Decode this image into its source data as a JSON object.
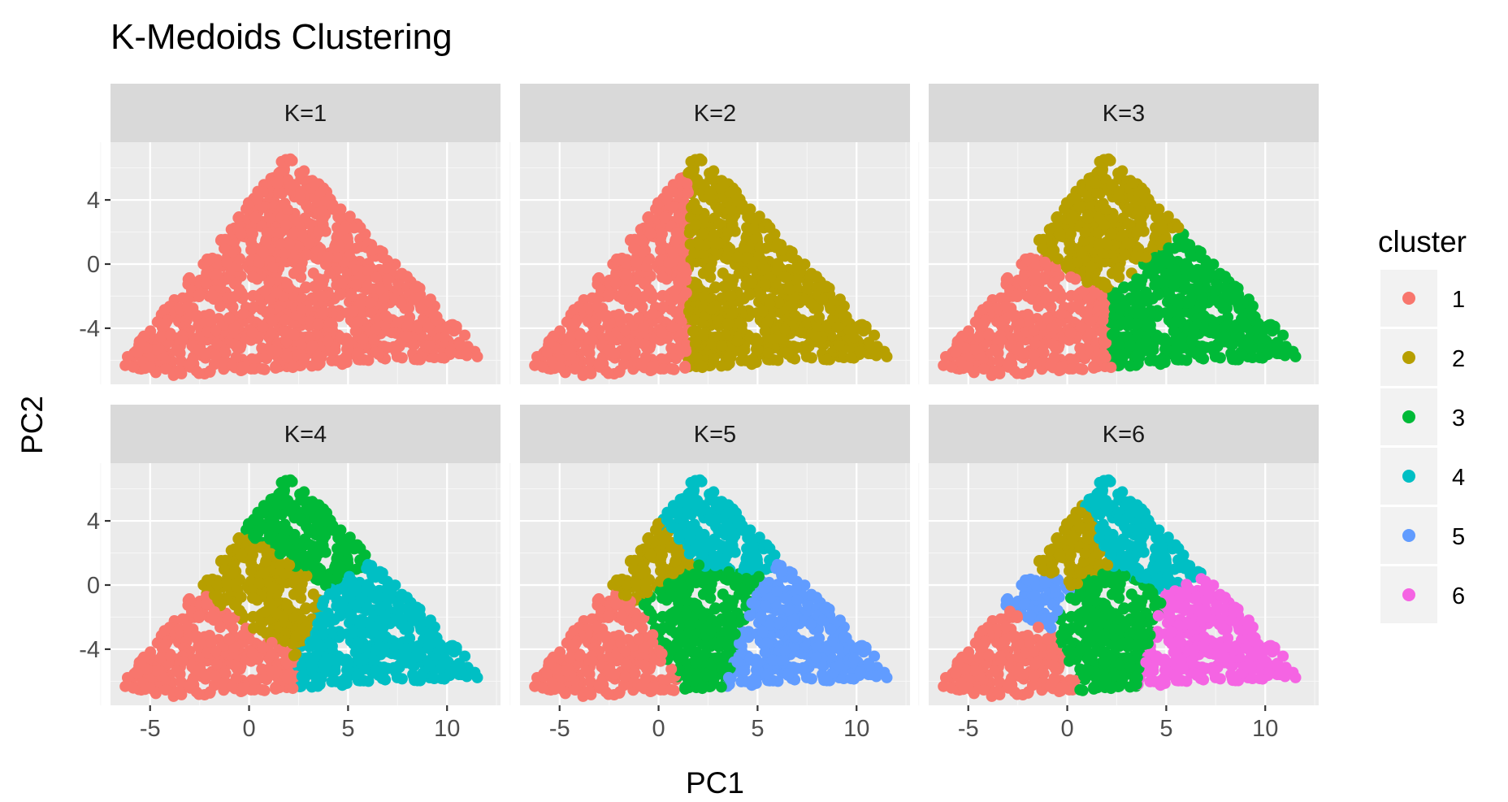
{
  "chart_data": {
    "type": "scatter",
    "title": "K-Medoids Clustering",
    "xlabel": "PC1",
    "ylabel": "PC2",
    "xlim": [
      -7,
      12.7
    ],
    "ylim": [
      -7.5,
      7.6
    ],
    "x_ticks": [
      -5,
      0,
      5,
      10
    ],
    "x_tick_labels": [
      "-5",
      "0",
      "5",
      "10"
    ],
    "y_ticks": [
      -4,
      0,
      4
    ],
    "y_tick_labels": [
      "-4",
      "0",
      "4"
    ],
    "grid": true,
    "facet_layout": {
      "rows": 2,
      "cols": 3
    },
    "facets": [
      "K=1",
      "K=2",
      "K=3",
      "K=4",
      "K=5",
      "K=6"
    ],
    "legend": {
      "title": "cluster",
      "placement": "right",
      "entries": [
        {
          "label": "1",
          "color": "#F8766D"
        },
        {
          "label": "2",
          "color": "#B79F00"
        },
        {
          "label": "3",
          "color": "#00BA38"
        },
        {
          "label": "4",
          "color": "#00BFC4"
        },
        {
          "label": "5",
          "color": "#619CFF"
        },
        {
          "label": "6",
          "color": "#F564E3"
        }
      ]
    },
    "cloud": {
      "peak": [
        2,
        7
      ],
      "left_tip": [
        -6.5,
        -6.3
      ],
      "right_tip": [
        12,
        -5.8
      ],
      "left_base": [
        -4,
        -7
      ],
      "right_base": [
        8,
        -6
      ],
      "point_count_estimate": 5000
    },
    "outliers": [
      [
        3.2,
        -5.1
      ],
      [
        -3.5,
        -6.7
      ],
      [
        -3,
        -6.2
      ],
      [
        1.8,
        -3.5
      ],
      [
        -1,
        -3.4
      ],
      [
        11,
        -5.7
      ]
    ],
    "cluster_medoids": {
      "K=1": [
        [
          1.5,
          0
        ]
      ],
      "K=2": [
        [
          -1.5,
          -0.5
        ],
        [
          4.5,
          -0.5
        ]
      ],
      "K=3": [
        [
          -2.5,
          -2.5
        ],
        [
          1.5,
          2.5
        ],
        [
          6.5,
          -2
        ]
      ],
      "K=4": [
        [
          -3,
          -3
        ],
        [
          0,
          0.5
        ],
        [
          2.5,
          3.5
        ],
        [
          7.5,
          -2.5
        ]
      ],
      "K=5": [
        [
          -3,
          -3
        ],
        [
          -0.5,
          1.5
        ],
        [
          1.5,
          -1
        ],
        [
          2.5,
          3.5
        ],
        [
          7.5,
          -2.5
        ]
      ],
      "K=6": [
        [
          -3.5,
          -3.5
        ],
        [
          -0.5,
          1.5
        ],
        [
          1.5,
          -1.5
        ],
        [
          4,
          3
        ],
        [
          -1.5,
          -0.2
        ],
        [
          7.5,
          -3
        ]
      ]
    }
  }
}
